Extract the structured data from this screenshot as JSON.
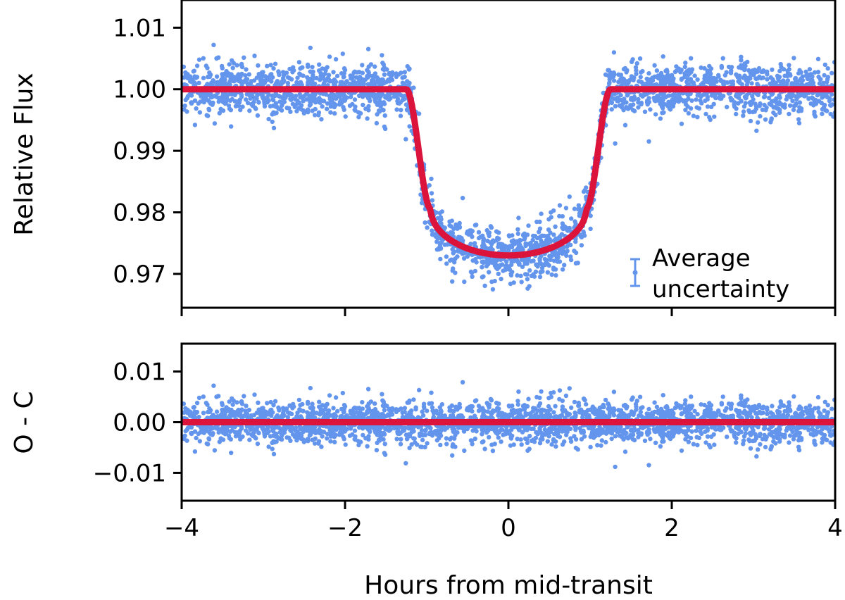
{
  "chart_data": [
    {
      "type": "scatter",
      "panel": "top",
      "ylabel": "Relative Flux",
      "xlim": [
        -4,
        4
      ],
      "ylim": [
        0.9645,
        1.0145
      ],
      "yticks": [
        0.97,
        0.98,
        0.99,
        1.0,
        1.01
      ],
      "ytick_labels": [
        "0.97",
        "0.98",
        "0.99",
        "1.00",
        "1.01"
      ],
      "xticks": [
        -4,
        -2,
        0,
        2,
        4
      ],
      "series": [
        {
          "kind": "points",
          "description_of_data": "dense photometric data points, scatter about model",
          "color": "#6495ed",
          "scatter_sigma": 0.0021
        },
        {
          "kind": "line",
          "color": "#dc143c",
          "model": {
            "baseline": 1.0,
            "depth_center": 0.027,
            "ingress_start": 1.25,
            "ingress_end": 0.95,
            "bottom_edge": 0.9805
          }
        }
      ],
      "legend": {
        "label_lines": [
          "Average",
          "uncertainty"
        ],
        "placement": "lower-right",
        "marker": "errorbar",
        "color": "#6495ed"
      }
    },
    {
      "type": "scatter",
      "panel": "bottom",
      "ylabel": "O - C",
      "xlabel": "Hours from mid-transit",
      "xlim": [
        -4,
        4
      ],
      "ylim": [
        -0.0155,
        0.0155
      ],
      "yticks": [
        -0.01,
        0.0,
        0.01
      ],
      "ytick_labels": [
        "−0.01",
        "0.00",
        "0.01"
      ],
      "xticks": [
        -4,
        -2,
        0,
        2,
        4
      ],
      "xtick_labels": [
        "−4",
        "−2",
        "0",
        "2",
        "4"
      ],
      "series": [
        {
          "kind": "points",
          "color": "#6495ed",
          "scatter_sigma": 0.0021
        },
        {
          "kind": "line",
          "color": "#dc143c",
          "value": 0.0
        }
      ]
    }
  ]
}
